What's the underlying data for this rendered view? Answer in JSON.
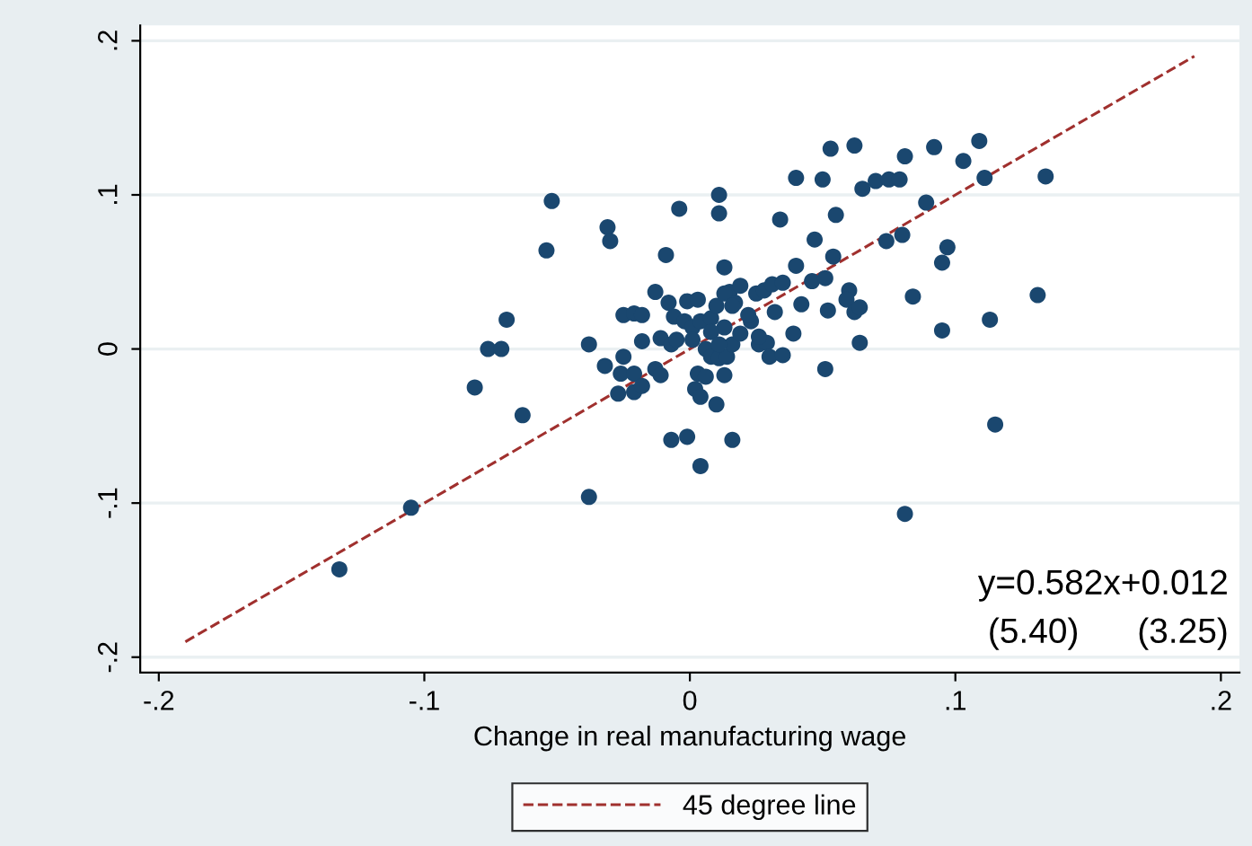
{
  "chart_data": {
    "type": "scatter",
    "xlabel": "Change in real manufacturing wage",
    "xlim": [
      -0.207,
      0.207
    ],
    "ylim": [
      -0.21,
      0.21
    ],
    "xticks": [
      {
        "value": -0.2,
        "label": "-.2"
      },
      {
        "value": -0.1,
        "label": "-.1"
      },
      0,
      {
        "value": 0.1,
        "label": ".1"
      },
      {
        "value": 0.2,
        "label": ".2"
      }
    ],
    "yticks": [
      {
        "value": -0.2,
        "label": "-.2"
      },
      {
        "value": -0.1,
        "label": "-.1"
      },
      0,
      {
        "value": 0.1,
        "label": ".1"
      },
      {
        "value": 0.2,
        "label": ".2"
      }
    ],
    "grid": "y",
    "legend": "bottom",
    "annotations": [
      "y=0.582x+0.012",
      "(5.40)      (3.25)"
    ],
    "series": [
      {
        "color": "#1a476f",
        "marker": "circle",
        "x": [
          -0.132,
          -0.105,
          -0.038,
          -0.081,
          -0.076,
          -0.071,
          -0.069,
          -0.063,
          -0.054,
          -0.052,
          -0.038,
          -0.031,
          -0.03,
          -0.032,
          -0.025,
          -0.025,
          -0.021,
          -0.018,
          -0.026,
          -0.021,
          -0.027,
          -0.021,
          -0.018,
          -0.018,
          -0.013,
          -0.013,
          -0.011,
          -0.011,
          -0.009,
          -0.007,
          -0.001,
          -0.004,
          -0.008,
          -0.006,
          -0.007,
          -0.005,
          -0.001,
          -0.002,
          0.001,
          0.003,
          0.004,
          0.002,
          0.004,
          0.003,
          0.006,
          0.01,
          0.011,
          0.011,
          0.013,
          0.016,
          0.013,
          0.006,
          0.008,
          0.011,
          0.014,
          0.004,
          0.008,
          0.01,
          0.013,
          0.015,
          0.017,
          0.019,
          0.016,
          0.019,
          0.023,
          0.025,
          0.028,
          0.026,
          0.029,
          0.03,
          0.032,
          0.031,
          0.035,
          0.035,
          0.034,
          0.039,
          0.04,
          0.04,
          0.042,
          0.046,
          0.047,
          0.051,
          0.051,
          0.05,
          0.053,
          0.052,
          0.055,
          0.054,
          0.06,
          0.059,
          0.062,
          0.062,
          0.064,
          0.064,
          0.065,
          0.07,
          0.075,
          0.079,
          0.074,
          0.08,
          0.081,
          0.081,
          0.084,
          0.089,
          0.092,
          0.095,
          0.097,
          0.095,
          0.103,
          0.109,
          0.111,
          0.113,
          0.115,
          0.131,
          0.134,
          0.013,
          0.016,
          0.008,
          0.011,
          0.022,
          0.026,
          0.001
        ],
        "values": [
          -0.143,
          -0.103,
          -0.096,
          -0.025,
          0,
          0,
          0.019,
          -0.043,
          0.064,
          0.096,
          0.003,
          0.079,
          0.07,
          -0.011,
          -0.005,
          0.022,
          0.023,
          0.022,
          -0.016,
          -0.016,
          -0.029,
          -0.028,
          -0.024,
          0.005,
          0.037,
          -0.013,
          -0.017,
          0.007,
          0.061,
          -0.059,
          -0.057,
          0.091,
          0.03,
          0.021,
          0.003,
          0.006,
          0.031,
          0.018,
          0.014,
          0.032,
          -0.076,
          -0.026,
          -0.031,
          -0.016,
          -0.018,
          -0.036,
          0.1,
          0.088,
          0.053,
          -0.059,
          -0.017,
          0,
          -0.005,
          -0.006,
          -0.005,
          0.018,
          0.02,
          0.028,
          0.014,
          0.037,
          0.03,
          0.041,
          0.003,
          0.01,
          0.018,
          0.036,
          0.038,
          0.003,
          0.004,
          -0.005,
          0.024,
          0.042,
          0.043,
          -0.004,
          0.084,
          0.01,
          0.054,
          0.111,
          0.029,
          0.044,
          0.071,
          0.046,
          -0.013,
          0.11,
          0.13,
          0.025,
          0.087,
          0.06,
          0.038,
          0.032,
          0.024,
          0.132,
          0.027,
          0.004,
          0.104,
          0.109,
          0.11,
          0.11,
          0.07,
          0.074,
          0.125,
          -0.107,
          0.034,
          0.095,
          0.131,
          0.056,
          0.066,
          0.012,
          0.122,
          0.135,
          0.111,
          0.019,
          -0.049,
          0.035,
          0.112,
          0.036,
          0.028,
          0.011,
          0.003,
          0.022,
          0.008,
          0.006
        ]
      },
      {
        "type": "line",
        "name": "45 degree line",
        "color": "#a0302e",
        "line_style": "dashed",
        "x": [
          -0.19,
          0.19
        ],
        "values": [
          -0.19,
          0.19
        ]
      }
    ]
  }
}
